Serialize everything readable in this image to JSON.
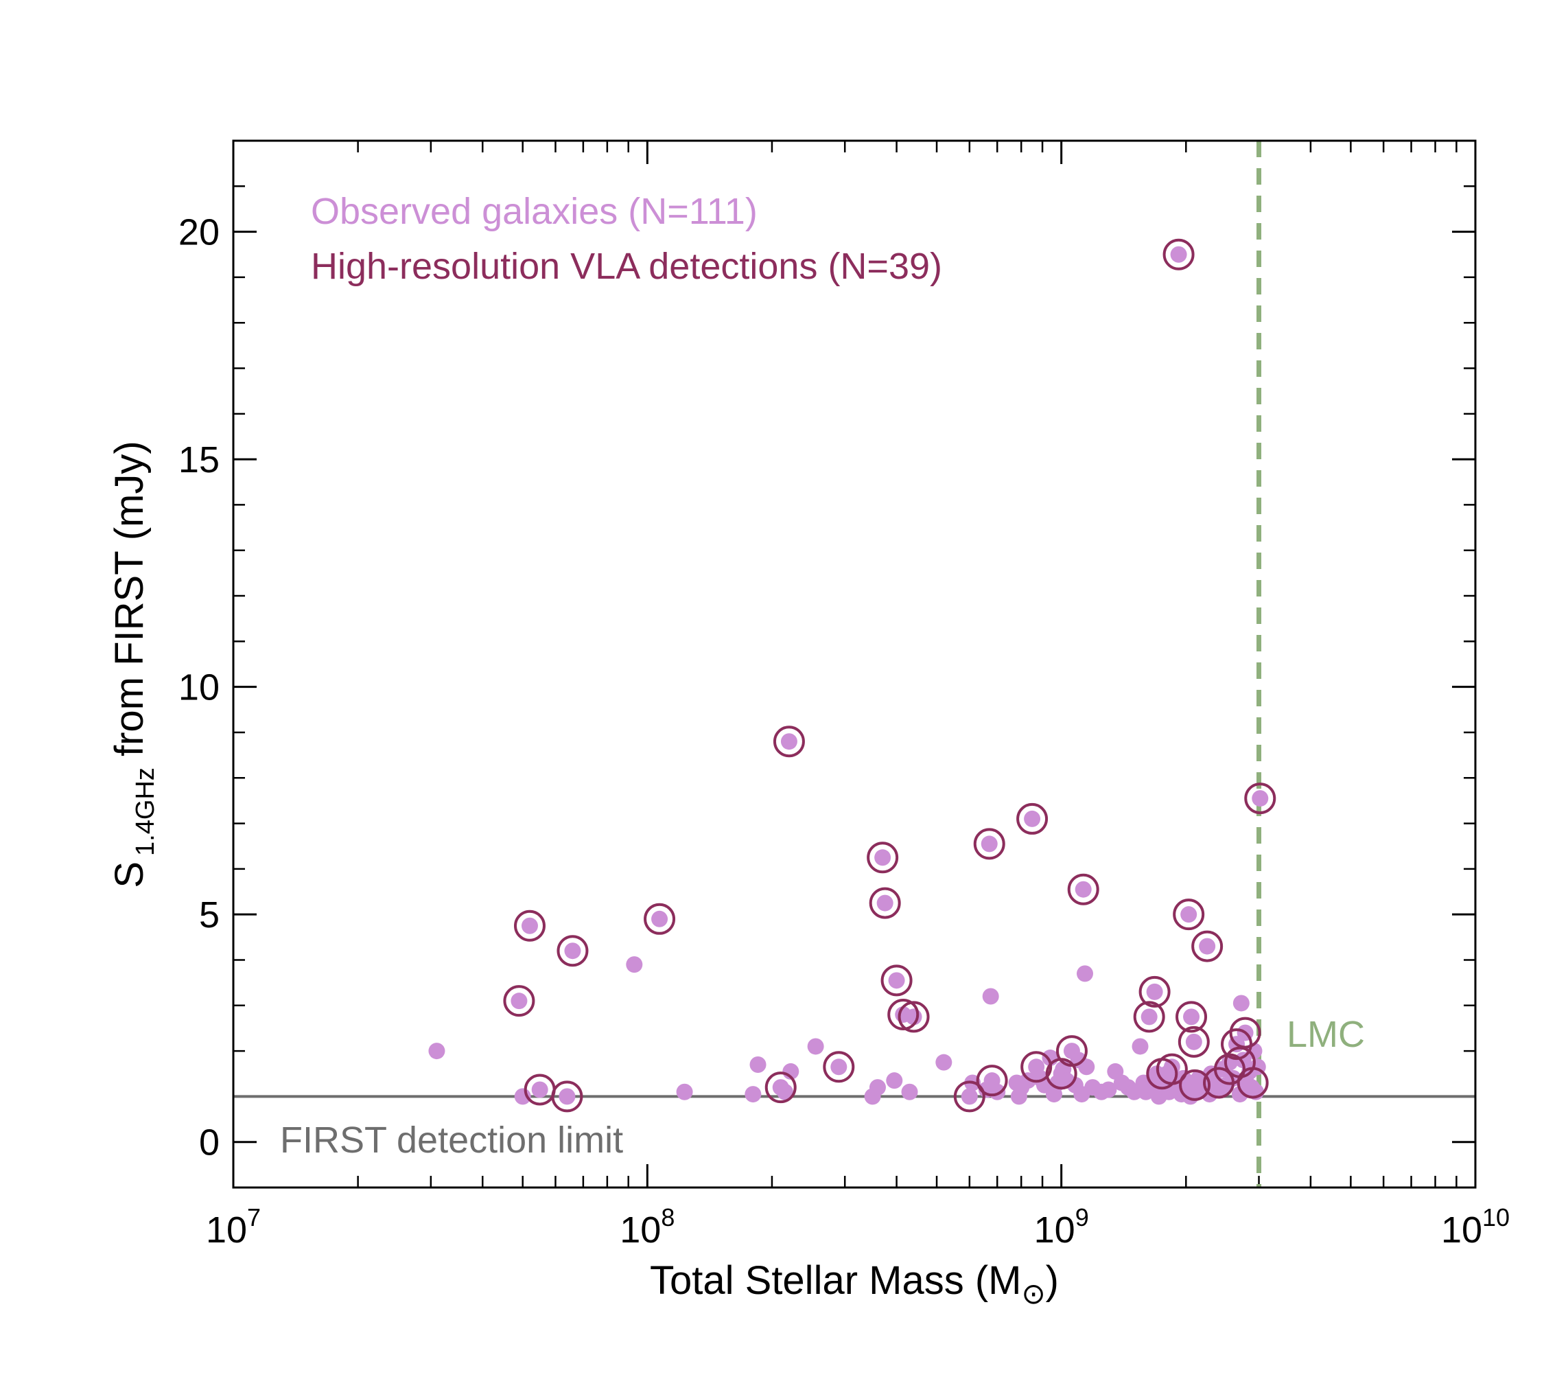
{
  "chart_data": {
    "type": "scatter",
    "title": "",
    "xlabel": "Total Stellar Mass (M",
    "xlabel_sub": "⊙",
    "xlabel_close": ")",
    "ylabel_main": "S",
    "ylabel_sub": "1.4GHz",
    "ylabel_rest": " from FIRST (mJy)",
    "xscale": "log",
    "xlim": [
      10000000,
      10000000000
    ],
    "ylim": [
      -1,
      22
    ],
    "x_ticks": [
      {
        "value": 10000000,
        "base": "10",
        "exp": "7"
      },
      {
        "value": 100000000,
        "base": "10",
        "exp": "8"
      },
      {
        "value": 1000000000,
        "base": "10",
        "exp": "9"
      },
      {
        "value": 10000000000,
        "base": "10",
        "exp": "10"
      }
    ],
    "y_ticks": [
      {
        "value": 0,
        "label": "0"
      },
      {
        "value": 5,
        "label": "5"
      },
      {
        "value": 10,
        "label": "10"
      },
      {
        "value": 15,
        "label": "15"
      },
      {
        "value": 20,
        "label": "20"
      }
    ],
    "y_minor_step": 1,
    "legend": {
      "position": "top-left",
      "entries": [
        {
          "label": "Observed galaxies (N=111)",
          "color": "#cc8fd6"
        },
        {
          "label": "High-resolution VLA detections (N=39)",
          "color": "#8c2d5c"
        }
      ]
    },
    "annotations": [
      {
        "text": "FIRST detection limit",
        "color": "#6e6e6e"
      },
      {
        "text": "LMC",
        "color": "#8fb07d"
      }
    ],
    "reference_lines": {
      "detection_limit_y": 1.0,
      "detection_limit_color": "#6e6e6e",
      "lmc_x": 3000000000,
      "lmc_color": "#8fb07d"
    },
    "colors": {
      "point_fill": "#cc8fd6",
      "circle_stroke": "#8c2d5c"
    },
    "series": [
      {
        "name": "Observed galaxies (N=111)",
        "points": [
          [
            31000000,
            2.0
          ],
          [
            49000000,
            3.1
          ],
          [
            50000000,
            1.0
          ],
          [
            52000000,
            4.75
          ],
          [
            55000000,
            1.15
          ],
          [
            64000000,
            1.0
          ],
          [
            66000000,
            4.2
          ],
          [
            93000000,
            3.9
          ],
          [
            107000000,
            4.9
          ],
          [
            123000000,
            1.1
          ],
          [
            180000000,
            1.05
          ],
          [
            185000000,
            1.7
          ],
          [
            210000000,
            1.2
          ],
          [
            215000000,
            1.1
          ],
          [
            220000000,
            8.8
          ],
          [
            222000000,
            1.55
          ],
          [
            255000000,
            2.1
          ],
          [
            290000000,
            1.65
          ],
          [
            350000000,
            1.0
          ],
          [
            360000000,
            1.2
          ],
          [
            370000000,
            6.25
          ],
          [
            375000000,
            5.25
          ],
          [
            395000000,
            1.35
          ],
          [
            400000000,
            3.55
          ],
          [
            415000000,
            2.8
          ],
          [
            430000000,
            1.1
          ],
          [
            440000000,
            2.75
          ],
          [
            520000000,
            1.75
          ],
          [
            600000000,
            1.0
          ],
          [
            610000000,
            1.3
          ],
          [
            660000000,
            1.15
          ],
          [
            670000000,
            6.55
          ],
          [
            675000000,
            3.2
          ],
          [
            680000000,
            1.35
          ],
          [
            700000000,
            1.1
          ],
          [
            780000000,
            1.3
          ],
          [
            790000000,
            1.0
          ],
          [
            800000000,
            1.2
          ],
          [
            830000000,
            1.35
          ],
          [
            850000000,
            7.1
          ],
          [
            870000000,
            1.65
          ],
          [
            890000000,
            1.4
          ],
          [
            910000000,
            1.25
          ],
          [
            940000000,
            1.85
          ],
          [
            960000000,
            1.05
          ],
          [
            980000000,
            1.3
          ],
          [
            1000000000,
            1.5
          ],
          [
            1010000000,
            1.6
          ],
          [
            1030000000,
            1.35
          ],
          [
            1060000000,
            2.0
          ],
          [
            1080000000,
            1.25
          ],
          [
            1100000000,
            1.8
          ],
          [
            1120000000,
            1.05
          ],
          [
            1130000000,
            5.55
          ],
          [
            1140000000,
            3.7
          ],
          [
            1150000000,
            1.65
          ],
          [
            1190000000,
            1.2
          ],
          [
            1250000000,
            1.1
          ],
          [
            1300000000,
            1.15
          ],
          [
            1350000000,
            1.55
          ],
          [
            1400000000,
            1.3
          ],
          [
            1450000000,
            1.2
          ],
          [
            1500000000,
            1.1
          ],
          [
            1550000000,
            2.1
          ],
          [
            1580000000,
            1.3
          ],
          [
            1600000000,
            1.1
          ],
          [
            1630000000,
            2.75
          ],
          [
            1650000000,
            1.25
          ],
          [
            1680000000,
            3.3
          ],
          [
            1700000000,
            1.5
          ],
          [
            1720000000,
            1.0
          ],
          [
            1750000000,
            1.3
          ],
          [
            1770000000,
            1.15
          ],
          [
            1800000000,
            1.5
          ],
          [
            1820000000,
            1.1
          ],
          [
            1850000000,
            1.65
          ],
          [
            1870000000,
            1.3
          ],
          [
            1900000000,
            1.2
          ],
          [
            1920000000,
            19.5
          ],
          [
            1950000000,
            1.05
          ],
          [
            1970000000,
            1.4
          ],
          [
            2000000000,
            1.25
          ],
          [
            2020000000,
            1.15
          ],
          [
            2030000000,
            5.0
          ],
          [
            2050000000,
            1.0
          ],
          [
            2060000000,
            2.75
          ],
          [
            2080000000,
            1.3
          ],
          [
            2090000000,
            2.2
          ],
          [
            2100000000,
            1.1
          ],
          [
            2150000000,
            1.4
          ],
          [
            2200000000,
            1.2
          ],
          [
            2250000000,
            4.3
          ],
          [
            2280000000,
            1.05
          ],
          [
            2300000000,
            1.5
          ],
          [
            2350000000,
            1.3
          ],
          [
            2400000000,
            1.15
          ],
          [
            2450000000,
            1.6
          ],
          [
            2500000000,
            1.25
          ],
          [
            2550000000,
            1.75
          ],
          [
            2600000000,
            1.4
          ],
          [
            2650000000,
            2.15
          ],
          [
            2700000000,
            1.05
          ],
          [
            2720000000,
            3.05
          ],
          [
            2750000000,
            1.8
          ],
          [
            2780000000,
            2.4
          ],
          [
            2800000000,
            1.3
          ],
          [
            2850000000,
            1.55
          ],
          [
            2880000000,
            1.2
          ],
          [
            2920000000,
            2.0
          ],
          [
            2950000000,
            1.1
          ],
          [
            2980000000,
            1.65
          ],
          [
            3020000000,
            7.55
          ]
        ]
      },
      {
        "name": "High-resolution VLA detections (N=39)",
        "points": [
          [
            49000000,
            3.1
          ],
          [
            52000000,
            4.75
          ],
          [
            55000000,
            1.15
          ],
          [
            64000000,
            1.0
          ],
          [
            66000000,
            4.2
          ],
          [
            107000000,
            4.9
          ],
          [
            210000000,
            1.2
          ],
          [
            220000000,
            8.8
          ],
          [
            290000000,
            1.65
          ],
          [
            370000000,
            6.25
          ],
          [
            375000000,
            5.25
          ],
          [
            400000000,
            3.55
          ],
          [
            415000000,
            2.8
          ],
          [
            440000000,
            2.75
          ],
          [
            600000000,
            1.0
          ],
          [
            670000000,
            6.55
          ],
          [
            680000000,
            1.35
          ],
          [
            850000000,
            7.1
          ],
          [
            870000000,
            1.65
          ],
          [
            1000000000,
            1.5
          ],
          [
            1060000000,
            2.0
          ],
          [
            1130000000,
            5.55
          ],
          [
            1630000000,
            2.75
          ],
          [
            1680000000,
            3.3
          ],
          [
            1750000000,
            1.5
          ],
          [
            1850000000,
            1.6
          ],
          [
            1920000000,
            19.5
          ],
          [
            2030000000,
            5.0
          ],
          [
            2060000000,
            2.75
          ],
          [
            2090000000,
            2.2
          ],
          [
            2100000000,
            1.25
          ],
          [
            2250000000,
            4.3
          ],
          [
            2400000000,
            1.3
          ],
          [
            2550000000,
            1.6
          ],
          [
            2650000000,
            2.15
          ],
          [
            2700000000,
            1.75
          ],
          [
            2780000000,
            2.4
          ],
          [
            2900000000,
            1.3
          ],
          [
            3020000000,
            7.55
          ]
        ]
      }
    ]
  }
}
